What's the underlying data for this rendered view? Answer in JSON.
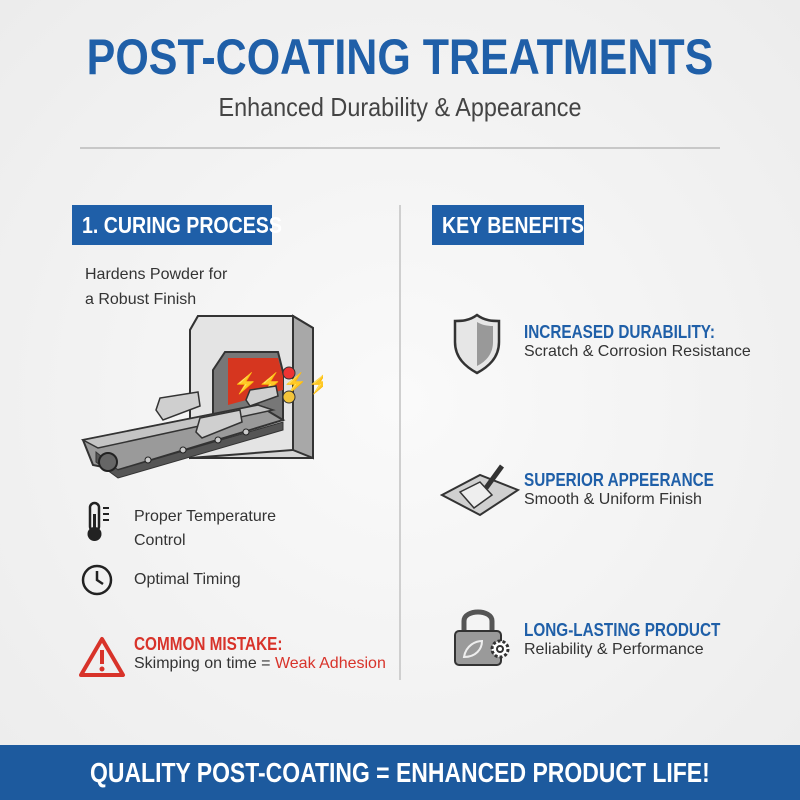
{
  "header": {
    "title": "POST-COATING TREATMENTS",
    "subtitle": "Enhanced Durability & Appearance"
  },
  "curing": {
    "heading": "1. CURING PROCESS",
    "description_line1": "Hardens Powder for",
    "description_line2": "a Robust Finish",
    "items": [
      {
        "icon": "thermometer-icon",
        "line1": "Proper Temperature",
        "line2": "Control"
      },
      {
        "icon": "clock-icon",
        "line1": "Optimal Timing"
      }
    ],
    "mistake": {
      "icon": "warning-icon",
      "title": "COMMON MISTAKE:",
      "text": "Skimping on time = ",
      "highlight": "Weak Adhesion"
    }
  },
  "benefits": {
    "heading": "KEY BENEFITS",
    "items": [
      {
        "icon": "shield-icon",
        "title": "INCREASED DURABILITY:",
        "desc": "Scratch & Corrosion Resistance"
      },
      {
        "icon": "paintbrush-icon",
        "title": "SUPERIOR APPEERANCE",
        "desc": "Smooth & Uniform Finish"
      },
      {
        "icon": "padlock-leaf-gear-icon",
        "title": "LONG-LASTING PRODUCT",
        "desc": "Reliability & Performance"
      }
    ]
  },
  "footer": {
    "text": "QUALITY POST-COATING = ENHANCED PRODUCT LIFE!"
  },
  "colors": {
    "brand_blue": "#1f5fa8",
    "warning_red": "#d8332a"
  }
}
